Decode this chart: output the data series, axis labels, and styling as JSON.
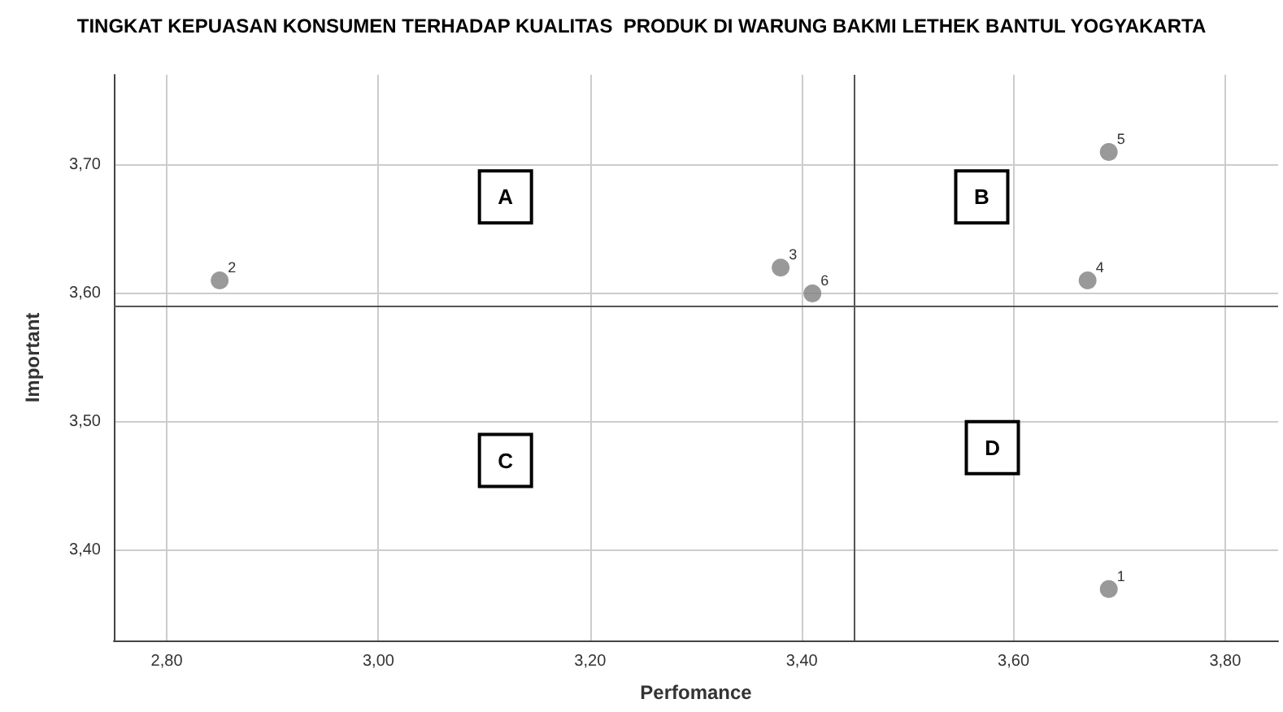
{
  "chart_data": {
    "type": "scatter",
    "title": "TINGKAT KEPUASAN KONSUMEN TERHADAP KUALITAS  PRODUK DI WARUNG BAKMI LETHEK BANTUL YOGYAKARTA",
    "xlabel": "Perfomance",
    "ylabel": "Important",
    "x": [
      3.69,
      2.85,
      3.38,
      3.67,
      3.69,
      3.41
    ],
    "values": [
      3.37,
      3.61,
      3.62,
      3.61,
      3.71,
      3.6
    ],
    "color": "#7f7f7f",
    "marker": "circle",
    "xlim": [
      2.75,
      3.85
    ],
    "xticks": [
      {
        "value": 2.8,
        "label": "2,80"
      },
      {
        "value": 3.0,
        "label": "3,00"
      },
      {
        "value": 3.2,
        "label": "3,20"
      },
      {
        "value": 3.4,
        "label": "3,40"
      },
      {
        "value": 3.6,
        "label": "3,60"
      },
      {
        "value": 3.8,
        "label": "3,80"
      }
    ],
    "ylim": [
      3.33,
      3.77
    ],
    "yticks": [
      {
        "value": 3.4,
        "label": "3,40"
      },
      {
        "value": 3.5,
        "label": "3,50"
      },
      {
        "value": 3.6,
        "label": "3,60"
      },
      {
        "value": 3.7,
        "label": "3,70"
      }
    ],
    "grid": true,
    "ref_lines": [
      {
        "axis": "x",
        "value": 3.45,
        "color": "#555555"
      },
      {
        "axis": "y",
        "value": 3.59,
        "color": "#555555"
      }
    ],
    "annotations": [
      {
        "text": "1",
        "x": 3.69,
        "y": 3.37
      },
      {
        "text": "2",
        "x": 2.85,
        "y": 3.61
      },
      {
        "text": "3",
        "x": 3.38,
        "y": 3.62
      },
      {
        "text": "4",
        "x": 3.67,
        "y": 3.61
      },
      {
        "text": "5",
        "x": 3.69,
        "y": 3.71
      },
      {
        "text": "6",
        "x": 3.41,
        "y": 3.6
      },
      {
        "text": "A",
        "x": 3.12,
        "y": 3.675
      },
      {
        "text": "B",
        "x": 3.57,
        "y": 3.675
      },
      {
        "text": "C",
        "x": 3.12,
        "y": 3.47
      },
      {
        "text": "D",
        "x": 3.58,
        "y": 3.48
      }
    ]
  }
}
